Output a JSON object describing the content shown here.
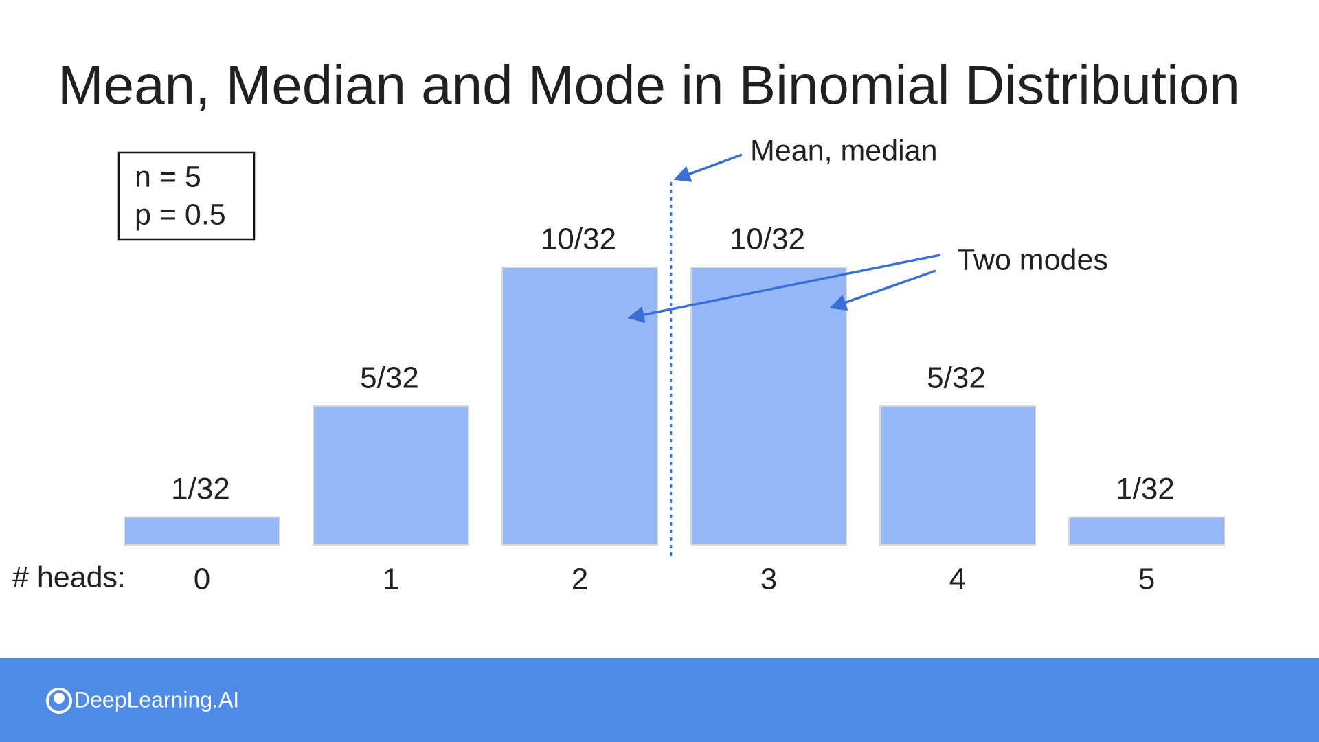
{
  "chart_data": {
    "type": "bar",
    "title": "Mean, Median and Mode in Binomial Distribution",
    "parameters": [
      "n = 5",
      "p = 0.5"
    ],
    "x_label": "# heads:",
    "categories": [
      "0",
      "1",
      "2",
      "3",
      "4",
      "5"
    ],
    "values": [
      0.03125,
      0.15625,
      0.3125,
      0.3125,
      0.15625,
      0.03125
    ],
    "value_labels": [
      "1/32",
      "5/32",
      "10/32",
      "10/32",
      "5/32",
      "1/32"
    ],
    "color": "#97b8f7",
    "annotations": [
      "Mean, median",
      "Two modes"
    ]
  },
  "footer": {
    "logo": "DeepLearning.AI"
  }
}
